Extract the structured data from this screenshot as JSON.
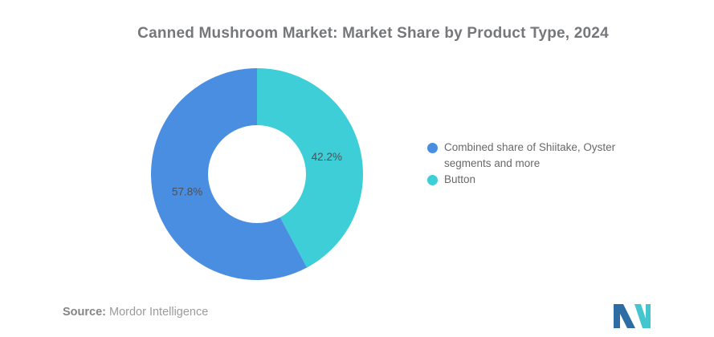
{
  "title": "Canned Mushroom Market: Market Share by Product Type, 2024",
  "chart_data": {
    "type": "pie",
    "subtype": "donut",
    "title": "Canned Mushroom Market: Market Share by Product Type, 2024",
    "slices": [
      {
        "name": "Combined share of Shiitake, Oyster segments and more",
        "value": 57.8,
        "label": "57.8%",
        "color": "#4A8EE2"
      },
      {
        "name": "Button",
        "value": 42.2,
        "label": "42.2%",
        "color": "#3DCED8"
      }
    ],
    "layout": {
      "start_angle": "top",
      "direction": "clockwise",
      "first_at_top_clockwise": "Button",
      "legend_position": "right",
      "inner_radius_ratio": 0.46
    },
    "label_color": "#4C5156"
  },
  "legend": {
    "items": [
      {
        "label": "Combined share of Shiitake, Oyster segments and more",
        "color": "#4A8EE2"
      },
      {
        "label": "Button",
        "color": "#3DCED8"
      }
    ]
  },
  "source": {
    "prefix": "Source:",
    "text": "Mordor Intelligence"
  },
  "logo": {
    "name": "mordor-intelligence-logo",
    "blue": "#2E6DA4",
    "teal": "#45C6CF"
  }
}
